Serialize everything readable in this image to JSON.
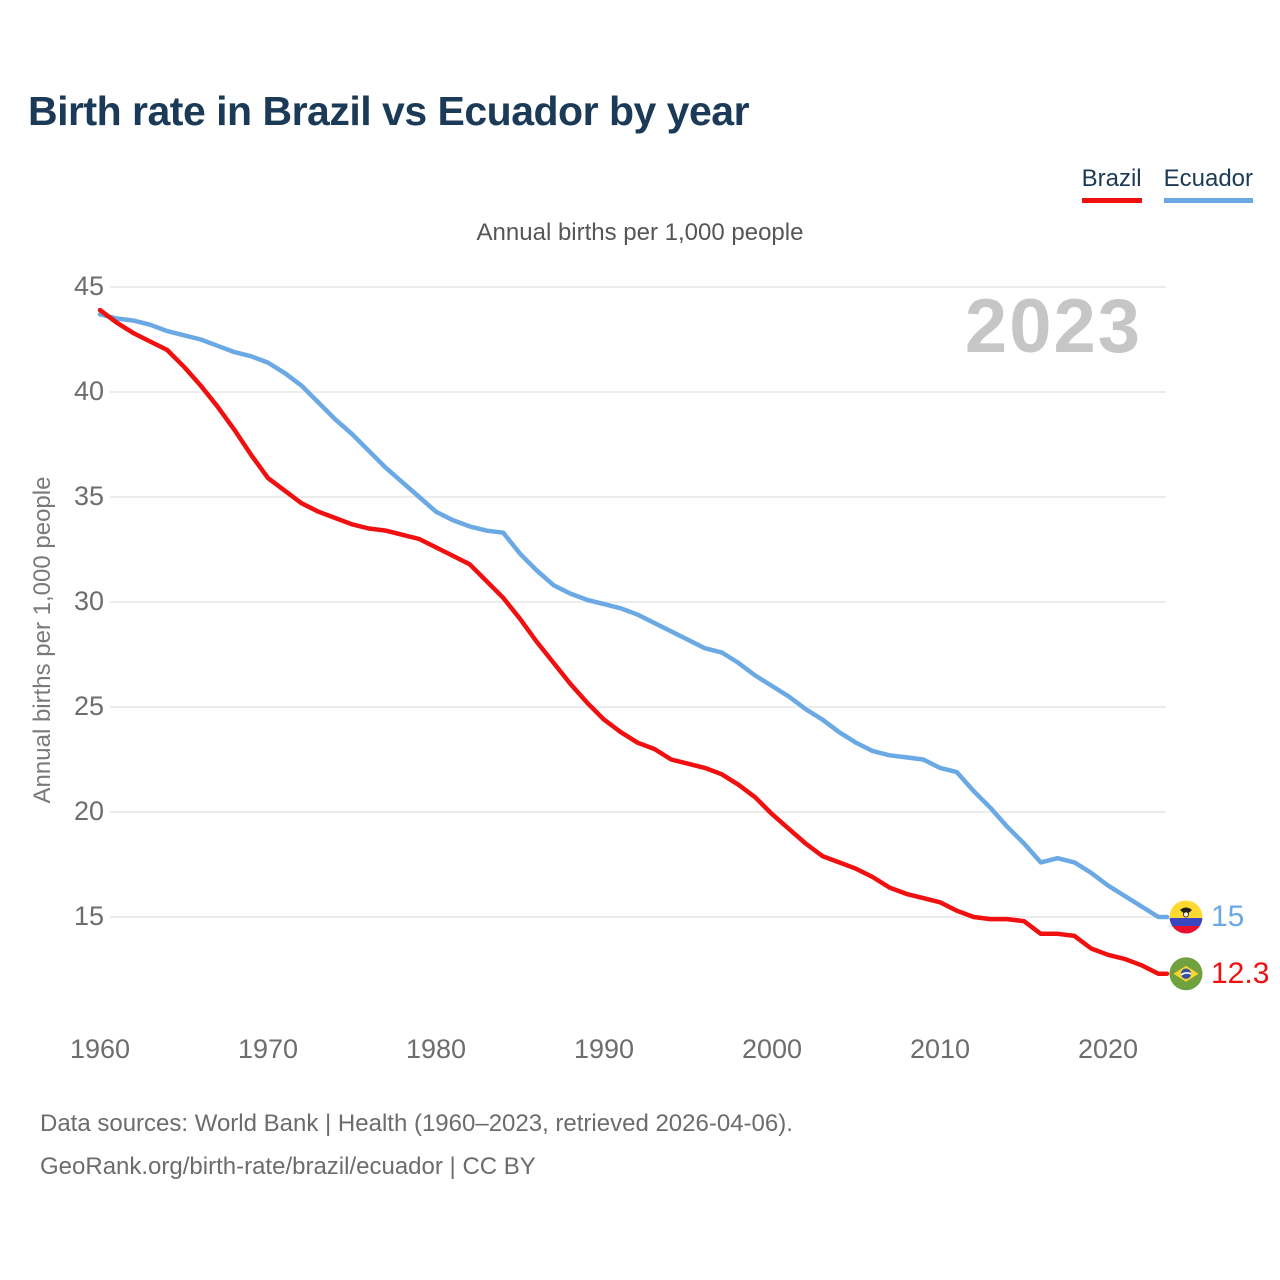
{
  "header": {
    "title": "Birth rate in Brazil vs Ecuador by year"
  },
  "legend": {
    "items": [
      {
        "key": "brazil",
        "label": "Brazil",
        "color": "#f01010"
      },
      {
        "key": "ecuador",
        "label": "Ecuador",
        "color": "#6aa9e4"
      }
    ]
  },
  "chart_data": {
    "type": "line",
    "title": "Birth rate in Brazil vs Ecuador by year",
    "subtitle": "Annual births per 1,000 people",
    "ylabel": "Annual births per 1,000 people",
    "xlabel": "",
    "watermark": "2023",
    "grid": "horizontal-only",
    "legend_position": "top-right",
    "xlim": [
      1960,
      2023
    ],
    "ylim": [
      12,
      45
    ],
    "y_ticks": [
      45,
      40,
      35,
      30,
      25,
      20,
      15
    ],
    "x_ticks": [
      1960,
      1970,
      1980,
      1990,
      2000,
      2010,
      2020
    ],
    "x": [
      1960,
      1961,
      1962,
      1963,
      1964,
      1965,
      1966,
      1967,
      1968,
      1969,
      1970,
      1971,
      1972,
      1973,
      1974,
      1975,
      1976,
      1977,
      1978,
      1979,
      1980,
      1981,
      1982,
      1983,
      1984,
      1985,
      1986,
      1987,
      1988,
      1989,
      1990,
      1991,
      1992,
      1993,
      1994,
      1995,
      1996,
      1997,
      1998,
      1999,
      2000,
      2001,
      2002,
      2003,
      2004,
      2005,
      2006,
      2007,
      2008,
      2009,
      2010,
      2011,
      2012,
      2013,
      2014,
      2015,
      2016,
      2017,
      2018,
      2019,
      2020,
      2021,
      2022,
      2023
    ],
    "series": [
      {
        "name": "Brazil",
        "key": "brazil",
        "color": "#f01010",
        "flag_icon": "brazil-flag-icon",
        "values": [
          43.9,
          43.3,
          42.8,
          42.4,
          42.0,
          41.2,
          40.3,
          39.3,
          38.2,
          37.0,
          35.9,
          35.3,
          34.7,
          34.3,
          34.0,
          33.7,
          33.5,
          33.4,
          33.2,
          33.0,
          32.6,
          32.2,
          31.8,
          31.0,
          30.2,
          29.2,
          28.1,
          27.1,
          26.1,
          25.2,
          24.4,
          23.8,
          23.3,
          23.0,
          22.5,
          22.3,
          22.1,
          21.8,
          21.3,
          20.7,
          19.9,
          19.2,
          18.5,
          17.9,
          17.6,
          17.3,
          16.9,
          16.4,
          16.1,
          15.9,
          15.7,
          15.3,
          15.0,
          14.9,
          14.9,
          14.8,
          14.2,
          14.2,
          14.1,
          13.5,
          13.2,
          13.0,
          12.7,
          12.3
        ]
      },
      {
        "name": "Ecuador",
        "key": "ecuador",
        "color": "#6aa9e4",
        "flag_icon": "ecuador-flag-icon",
        "values": [
          43.7,
          43.5,
          43.4,
          43.2,
          42.9,
          42.7,
          42.5,
          42.2,
          41.9,
          41.7,
          41.4,
          40.9,
          40.3,
          39.5,
          38.7,
          38.0,
          37.2,
          36.4,
          35.7,
          35.0,
          34.3,
          33.9,
          33.6,
          33.4,
          33.3,
          32.3,
          31.5,
          30.8,
          30.4,
          30.1,
          29.9,
          29.7,
          29.4,
          29.0,
          28.6,
          28.2,
          27.8,
          27.6,
          27.1,
          26.5,
          26.0,
          25.5,
          24.9,
          24.4,
          23.8,
          23.3,
          22.9,
          22.7,
          22.6,
          22.5,
          22.1,
          21.9,
          21.0,
          20.2,
          19.3,
          18.5,
          17.6,
          17.8,
          17.6,
          17.1,
          16.5,
          16.0,
          15.5,
          15.0
        ]
      }
    ],
    "end_labels": {
      "brazil": "12.3",
      "ecuador": "15"
    }
  },
  "footer": {
    "line1": "Data sources: World Bank | Health (1960–2023, retrieved 2026-04-06).",
    "line2": "GeoRank.org/birth-rate/brazil/ecuador | CC BY"
  }
}
